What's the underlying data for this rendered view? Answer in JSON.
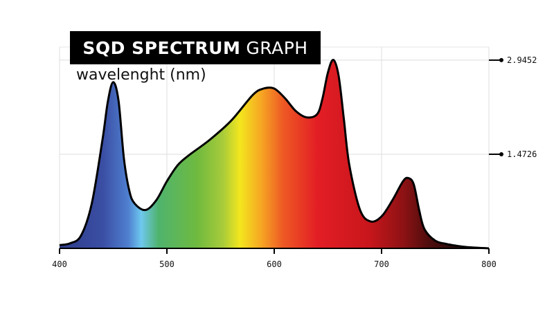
{
  "chart_data": {
    "type": "area",
    "title_bold": "SQD SPECTRUM",
    "title_light": "GRAPH",
    "xlabel": "wavelenght (nm)",
    "ylabel": "",
    "xlim": [
      400,
      800
    ],
    "ylim": [
      0,
      3.15
    ],
    "x_ticks": [
      "400",
      "500",
      "600",
      "700",
      "800"
    ],
    "y_ticks": [
      "1.4726",
      "2.9452"
    ],
    "y_tick_values": [
      1.4726,
      2.9452
    ],
    "grid": true,
    "series": [
      {
        "x": [
          400,
          410,
          420,
          430,
          440,
          445,
          450,
          455,
          460,
          465,
          470,
          480,
          490,
          500,
          510,
          520,
          540,
          560,
          580,
          590,
          600,
          610,
          620,
          630,
          640,
          645,
          650,
          655,
          660,
          665,
          670,
          680,
          690,
          700,
          710,
          720,
          725,
          730,
          735,
          740,
          750,
          760,
          770,
          780,
          800
        ],
        "y": [
          0.05,
          0.08,
          0.2,
          0.7,
          1.7,
          2.3,
          2.6,
          2.3,
          1.4,
          0.9,
          0.7,
          0.6,
          0.75,
          1.05,
          1.3,
          1.45,
          1.7,
          2.0,
          2.4,
          2.5,
          2.5,
          2.35,
          2.15,
          2.05,
          2.1,
          2.35,
          2.75,
          2.95,
          2.7,
          2.0,
          1.3,
          0.6,
          0.42,
          0.5,
          0.75,
          1.05,
          1.1,
          1.0,
          0.6,
          0.3,
          0.12,
          0.07,
          0.04,
          0.02,
          0.0
        ]
      }
    ]
  }
}
